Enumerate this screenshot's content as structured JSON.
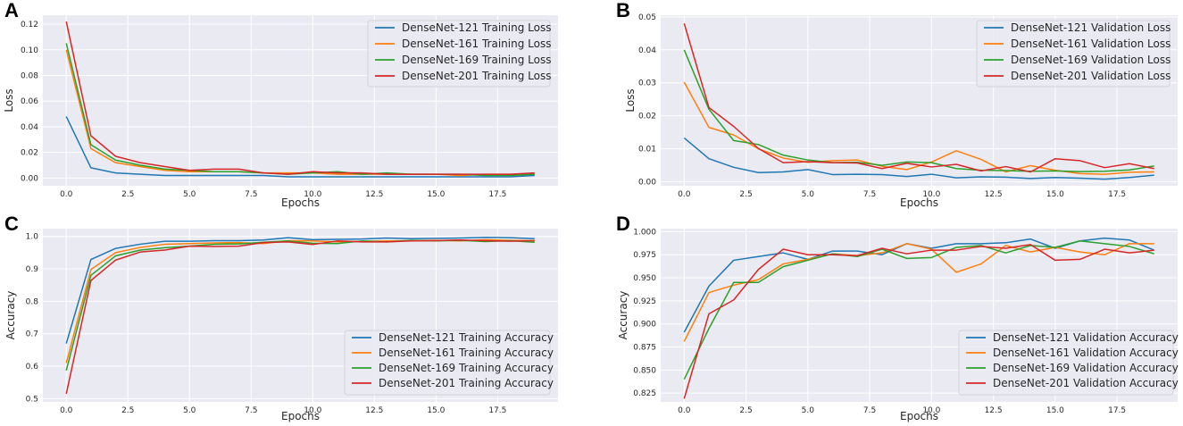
{
  "chart_data": [
    {
      "panel": "A",
      "type": "line",
      "xlabel": "Epochs",
      "ylabel": "Loss",
      "xlim": [
        -0.95,
        19.95
      ],
      "ylim": [
        -0.006,
        0.127
      ],
      "xticks": [
        0.0,
        2.5,
        5.0,
        7.5,
        10.0,
        12.5,
        15.0,
        17.5
      ],
      "xtick_labels": [
        "0.0",
        "2.5",
        "5.0",
        "7.5",
        "10.0",
        "12.5",
        "15.0",
        "17.5"
      ],
      "yticks": [
        0.0,
        0.02,
        0.04,
        0.06,
        0.08,
        0.1,
        0.12
      ],
      "ytick_labels": [
        "0.00",
        "0.02",
        "0.04",
        "0.06",
        "0.08",
        "0.10",
        "0.12"
      ],
      "grid": true,
      "legend_position": "top-right",
      "x": [
        0,
        1,
        2,
        3,
        4,
        5,
        6,
        7,
        8,
        9,
        10,
        11,
        12,
        13,
        14,
        15,
        16,
        17,
        18,
        19
      ],
      "series": [
        {
          "name": "DenseNet-121 Training Loss",
          "color": "#1f77b4",
          "values": [
            0.048,
            0.008,
            0.004,
            0.003,
            0.002,
            0.002,
            0.002,
            0.002,
            0.002,
            0.001,
            0.001,
            0.001,
            0.001,
            0.001,
            0.001,
            0.001,
            0.001,
            0.001,
            0.001,
            0.002
          ]
        },
        {
          "name": "DenseNet-161 Training Loss",
          "color": "#ff7f0e",
          "values": [
            0.1,
            0.023,
            0.012,
            0.009,
            0.006,
            0.005,
            0.005,
            0.005,
            0.004,
            0.004,
            0.004,
            0.003,
            0.003,
            0.003,
            0.003,
            0.003,
            0.002,
            0.003,
            0.003,
            0.003
          ]
        },
        {
          "name": "DenseNet-169 Training Loss",
          "color": "#2ca02c",
          "values": [
            0.105,
            0.026,
            0.014,
            0.01,
            0.007,
            0.006,
            0.005,
            0.005,
            0.004,
            0.003,
            0.004,
            0.005,
            0.003,
            0.004,
            0.003,
            0.003,
            0.003,
            0.002,
            0.002,
            0.003
          ]
        },
        {
          "name": "DenseNet-201 Training Loss",
          "color": "#d62728",
          "values": [
            0.122,
            0.033,
            0.017,
            0.012,
            0.009,
            0.006,
            0.007,
            0.007,
            0.004,
            0.003,
            0.005,
            0.004,
            0.004,
            0.003,
            0.003,
            0.003,
            0.003,
            0.003,
            0.003,
            0.004
          ]
        }
      ]
    },
    {
      "panel": "B",
      "type": "line",
      "xlabel": "Epochs",
      "ylabel": "Loss",
      "xlim": [
        -0.95,
        19.95
      ],
      "ylim": [
        -0.0012,
        0.0505
      ],
      "xticks": [
        0.0,
        2.5,
        5.0,
        7.5,
        10.0,
        12.5,
        15.0,
        17.5
      ],
      "xtick_labels": [
        "0.0",
        "2.5",
        "5.0",
        "7.5",
        "10.0",
        "12.5",
        "15.0",
        "17.5"
      ],
      "yticks": [
        0.0,
        0.01,
        0.02,
        0.03,
        0.04,
        0.05
      ],
      "ytick_labels": [
        "0.00",
        "0.01",
        "0.02",
        "0.03",
        "0.04",
        "0.05"
      ],
      "grid": true,
      "legend_position": "top-right",
      "x": [
        0,
        1,
        2,
        3,
        4,
        5,
        6,
        7,
        8,
        9,
        10,
        11,
        12,
        13,
        14,
        15,
        16,
        17,
        18,
        19
      ],
      "series": [
        {
          "name": "DenseNet-121 Validation Loss",
          "color": "#1f77b4",
          "values": [
            0.0133,
            0.007,
            0.0044,
            0.0028,
            0.003,
            0.0037,
            0.0022,
            0.0023,
            0.0022,
            0.0016,
            0.0023,
            0.0012,
            0.0015,
            0.0014,
            0.001,
            0.0013,
            0.0011,
            0.0008,
            0.0013,
            0.002
          ]
        },
        {
          "name": "DenseNet-161 Validation Loss",
          "color": "#ff7f0e",
          "values": [
            0.0302,
            0.0165,
            0.0142,
            0.01,
            0.0072,
            0.0059,
            0.0064,
            0.0066,
            0.0047,
            0.0037,
            0.006,
            0.0094,
            0.0068,
            0.003,
            0.0049,
            0.0035,
            0.0025,
            0.0023,
            0.0029,
            0.003
          ]
        },
        {
          "name": "DenseNet-169 Validation Loss",
          "color": "#2ca02c",
          "values": [
            0.04,
            0.022,
            0.0125,
            0.0113,
            0.0081,
            0.0066,
            0.0058,
            0.0059,
            0.005,
            0.006,
            0.0058,
            0.004,
            0.0035,
            0.0034,
            0.0032,
            0.0033,
            0.0031,
            0.0032,
            0.0036,
            0.0048
          ]
        },
        {
          "name": "DenseNet-201 Validation Loss",
          "color": "#d62728",
          "values": [
            0.048,
            0.0225,
            0.0168,
            0.0101,
            0.0058,
            0.0061,
            0.0058,
            0.0057,
            0.004,
            0.0056,
            0.0045,
            0.0053,
            0.0033,
            0.0046,
            0.003,
            0.007,
            0.0064,
            0.0043,
            0.0055,
            0.004
          ]
        }
      ]
    },
    {
      "panel": "C",
      "type": "line",
      "xlabel": "Epochs",
      "ylabel": "Accuracy",
      "xlim": [
        -0.95,
        19.95
      ],
      "ylim": [
        0.49,
        1.024
      ],
      "xticks": [
        0.0,
        2.5,
        5.0,
        7.5,
        10.0,
        12.5,
        15.0,
        17.5
      ],
      "xtick_labels": [
        "0.0",
        "2.5",
        "5.0",
        "7.5",
        "10.0",
        "12.5",
        "15.0",
        "17.5"
      ],
      "yticks": [
        0.5,
        0.6,
        0.7,
        0.8,
        0.9,
        1.0
      ],
      "ytick_labels": [
        "0.5",
        "0.6",
        "0.7",
        "0.8",
        "0.9",
        "1.0"
      ],
      "grid": true,
      "legend_position": "bottom-right",
      "x": [
        0,
        1,
        2,
        3,
        4,
        5,
        6,
        7,
        8,
        9,
        10,
        11,
        12,
        13,
        14,
        15,
        16,
        17,
        18,
        19
      ],
      "series": [
        {
          "name": "DenseNet-121 Training Accuracy",
          "color": "#1f77b4",
          "values": [
            0.67,
            0.929,
            0.963,
            0.976,
            0.985,
            0.985,
            0.987,
            0.987,
            0.989,
            0.996,
            0.99,
            0.991,
            0.992,
            0.995,
            0.993,
            0.994,
            0.995,
            0.997,
            0.996,
            0.993
          ]
        },
        {
          "name": "DenseNet-161 Training Accuracy",
          "color": "#ff7f0e",
          "values": [
            0.61,
            0.898,
            0.95,
            0.966,
            0.976,
            0.978,
            0.98,
            0.981,
            0.978,
            0.987,
            0.986,
            0.983,
            0.985,
            0.986,
            0.987,
            0.988,
            0.986,
            0.99,
            0.988,
            0.987
          ]
        },
        {
          "name": "DenseNet-169 Training Accuracy",
          "color": "#2ca02c",
          "values": [
            0.587,
            0.88,
            0.94,
            0.958,
            0.965,
            0.97,
            0.976,
            0.977,
            0.982,
            0.986,
            0.979,
            0.978,
            0.986,
            0.983,
            0.988,
            0.986,
            0.988,
            0.984,
            0.987,
            0.982
          ]
        },
        {
          "name": "DenseNet-201 Training Accuracy",
          "color": "#d62728",
          "values": [
            0.515,
            0.864,
            0.927,
            0.952,
            0.958,
            0.97,
            0.969,
            0.97,
            0.981,
            0.983,
            0.975,
            0.986,
            0.983,
            0.983,
            0.986,
            0.987,
            0.989,
            0.987,
            0.985,
            0.987
          ]
        }
      ]
    },
    {
      "panel": "D",
      "type": "line",
      "xlabel": "Epochs",
      "ylabel": "Accuracy",
      "xlim": [
        -0.95,
        19.95
      ],
      "ylim": [
        0.8155,
        1.0033
      ],
      "xticks": [
        0.0,
        2.5,
        5.0,
        7.5,
        10.0,
        12.5,
        15.0,
        17.5
      ],
      "xtick_labels": [
        "0.0",
        "2.5",
        "5.0",
        "7.5",
        "10.0",
        "12.5",
        "15.0",
        "17.5"
      ],
      "yticks": [
        0.825,
        0.85,
        0.875,
        0.9,
        0.925,
        0.95,
        0.975,
        1.0
      ],
      "ytick_labels": [
        "0.825",
        "0.850",
        "0.875",
        "0.900",
        "0.925",
        "0.950",
        "0.975",
        "1.000"
      ],
      "grid": true,
      "legend_position": "bottom-right",
      "x": [
        0,
        1,
        2,
        3,
        4,
        5,
        6,
        7,
        8,
        9,
        10,
        11,
        12,
        13,
        14,
        15,
        16,
        17,
        18,
        19
      ],
      "series": [
        {
          "name": "DenseNet-121 Validation Accuracy",
          "color": "#1f77b4",
          "values": [
            0.891,
            0.941,
            0.969,
            0.973,
            0.977,
            0.97,
            0.979,
            0.979,
            0.975,
            0.987,
            0.982,
            0.987,
            0.987,
            0.988,
            0.992,
            0.982,
            0.99,
            0.993,
            0.991,
            0.98
          ]
        },
        {
          "name": "DenseNet-161 Validation Accuracy",
          "color": "#ff7f0e",
          "values": [
            0.881,
            0.934,
            0.942,
            0.948,
            0.965,
            0.97,
            0.976,
            0.974,
            0.977,
            0.987,
            0.981,
            0.956,
            0.965,
            0.985,
            0.978,
            0.983,
            0.978,
            0.975,
            0.987,
            0.987
          ]
        },
        {
          "name": "DenseNet-169 Validation Accuracy",
          "color": "#2ca02c",
          "values": [
            0.84,
            0.895,
            0.945,
            0.945,
            0.962,
            0.969,
            0.976,
            0.973,
            0.981,
            0.971,
            0.972,
            0.983,
            0.985,
            0.977,
            0.985,
            0.983,
            0.99,
            0.987,
            0.984,
            0.976
          ]
        },
        {
          "name": "DenseNet-201 Validation Accuracy",
          "color": "#d62728",
          "values": [
            0.819,
            0.911,
            0.926,
            0.959,
            0.981,
            0.975,
            0.975,
            0.974,
            0.982,
            0.976,
            0.98,
            0.98,
            0.984,
            0.982,
            0.986,
            0.969,
            0.97,
            0.981,
            0.977,
            0.98
          ]
        }
      ]
    }
  ]
}
